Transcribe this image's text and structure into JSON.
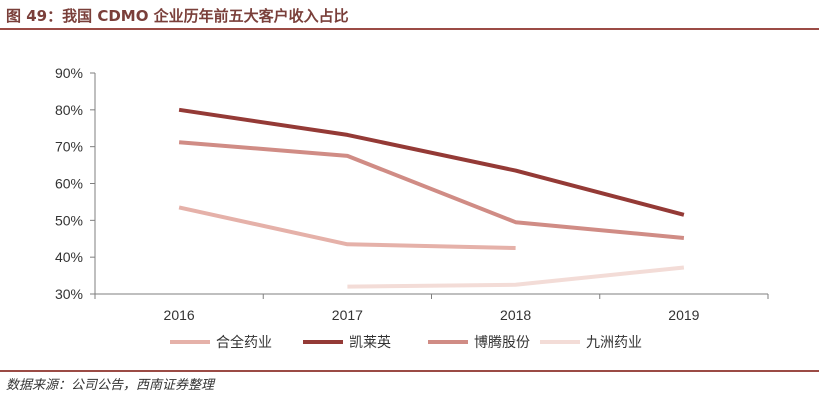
{
  "header": {
    "title": "图 49：我国 CDMO 企业历年前五大客户收入占比"
  },
  "footer": {
    "source": "数据来源：公司公告，西南证券整理"
  },
  "chart_data": {
    "type": "line",
    "x": [
      "2016",
      "2017",
      "2018",
      "2019"
    ],
    "yticks": [
      "30%",
      "40%",
      "50%",
      "60%",
      "70%",
      "80%",
      "90%"
    ],
    "ylim": [
      30,
      90
    ],
    "grid": false,
    "legend": "bottom",
    "series": [
      {
        "name": "合全药业",
        "color": "#e5b1a9",
        "values": [
          53.5,
          43.5,
          42.5,
          null
        ]
      },
      {
        "name": "凯莱英",
        "color": "#943a36",
        "values": [
          80.0,
          73.2,
          63.5,
          51.5
        ]
      },
      {
        "name": "博腾股份",
        "color": "#d08c85",
        "values": [
          71.2,
          67.5,
          49.5,
          45.2
        ]
      },
      {
        "name": "九洲药业",
        "color": "#f3dcd7",
        "values": [
          null,
          32.0,
          32.5,
          37.2
        ]
      }
    ]
  }
}
